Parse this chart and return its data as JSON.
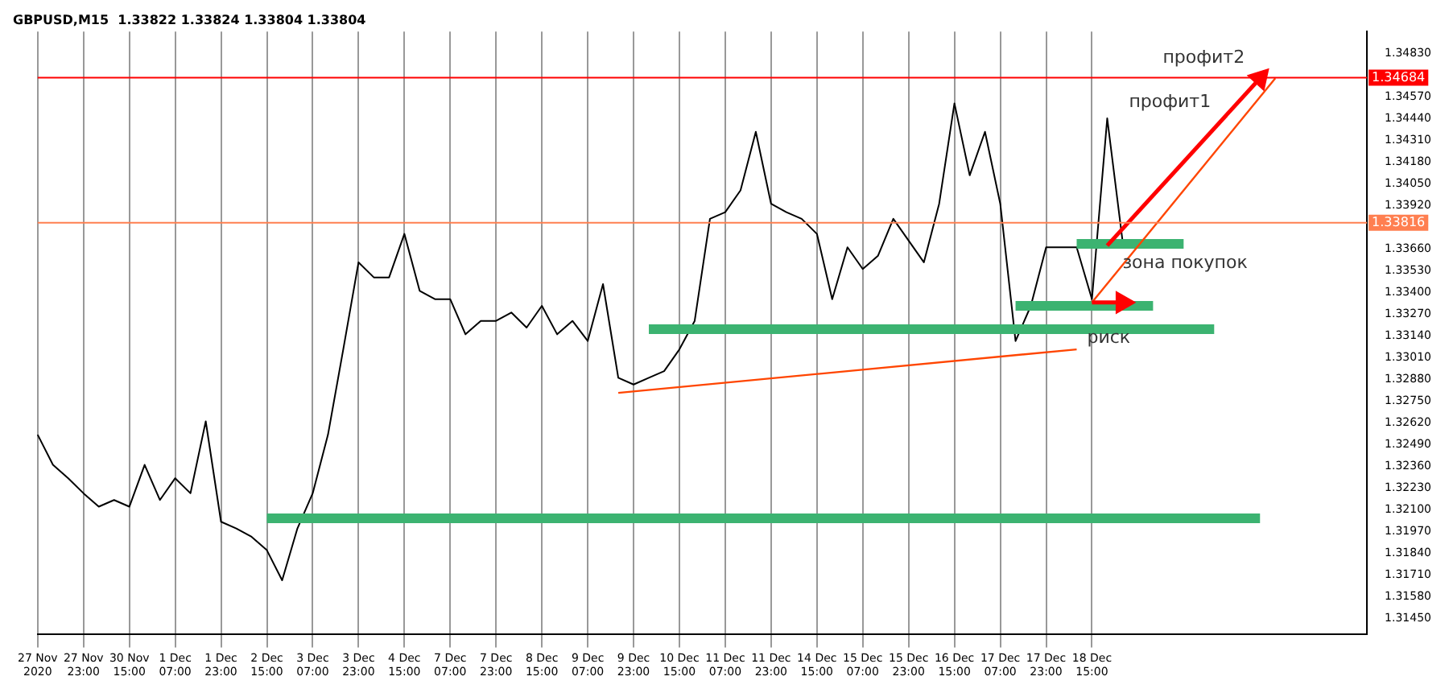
{
  "chart_data": {
    "type": "line",
    "title": "GBPUSD,M15  1.33822 1.33824 1.33804 1.33804",
    "categories": [
      "27 Nov 2020",
      null,
      null,
      "27 Nov 23:00",
      null,
      null,
      "30 Nov 15:00",
      null,
      null,
      "1 Dec 07:00",
      null,
      null,
      "1 Dec 23:00",
      null,
      null,
      "2 Dec 15:00",
      null,
      null,
      "3 Dec 07:00",
      null,
      null,
      "3 Dec 23:00",
      null,
      null,
      "4 Dec 15:00",
      null,
      null,
      "7 Dec 07:00",
      null,
      null,
      "7 Dec 23:00",
      null,
      null,
      "8 Dec 15:00",
      null,
      null,
      "9 Dec 07:00",
      null,
      null,
      "9 Dec 23:00",
      null,
      null,
      "10 Dec 15:00",
      null,
      null,
      "11 Dec 07:00",
      null,
      null,
      "11 Dec 23:00",
      null,
      null,
      "14 Dec 15:00",
      null,
      null,
      "15 Dec 07:00",
      null,
      null,
      "15 Dec 23:00",
      null,
      null,
      "16 Dec 15:00",
      null,
      null,
      "17 Dec 07:00",
      null,
      null,
      "17 Dec 23:00",
      null,
      null,
      "18 Dec 15:00",
      null,
      null,
      null,
      null,
      null,
      null,
      null,
      null,
      null,
      null,
      null,
      null,
      null,
      null,
      null,
      null,
      null,
      null
    ],
    "ylim": [
      1.31356,
      1.34959
    ],
    "yticks": [
      {
        "value": 1.3145,
        "label": "1.31450"
      },
      {
        "value": 1.3158,
        "label": "1.31580"
      },
      {
        "value": 1.3171,
        "label": "1.31710"
      },
      {
        "value": 1.3184,
        "label": "1.31840"
      },
      {
        "value": 1.3197,
        "label": "1.31970"
      },
      {
        "value": 1.321,
        "label": "1.32100"
      },
      {
        "value": 1.3223,
        "label": "1.32230"
      },
      {
        "value": 1.3236,
        "label": "1.32360"
      },
      {
        "value": 1.3249,
        "label": "1.32490"
      },
      {
        "value": 1.3262,
        "label": "1.32620"
      },
      {
        "value": 1.3275,
        "label": "1.32750"
      },
      {
        "value": 1.3288,
        "label": "1.32880"
      },
      {
        "value": 1.3301,
        "label": "1.33010"
      },
      {
        "value": 1.3314,
        "label": "1.33140"
      },
      {
        "value": 1.3327,
        "label": "1.33270"
      },
      {
        "value": 1.334,
        "label": "1.33400"
      },
      {
        "value": 1.3353,
        "label": "1.33530"
      },
      {
        "value": 1.3366,
        "label": "1.33660"
      },
      {
        "value": 1.3392,
        "label": "1.33920"
      },
      {
        "value": 1.3405,
        "label": "1.34050"
      },
      {
        "value": 1.3418,
        "label": "1.34180"
      },
      {
        "value": 1.3431,
        "label": "1.34310"
      },
      {
        "value": 1.3444,
        "label": "1.34440"
      },
      {
        "value": 1.3457,
        "label": "1.34570"
      },
      {
        "value": 1.3483,
        "label": "1.34830"
      }
    ],
    "grid": "x",
    "legend": false,
    "marker": "none",
    "series": [
      {
        "color": "#000000",
        "values": [
          1.3255,
          1.3237,
          1.3229,
          1.322,
          1.3212,
          1.3216,
          1.3212,
          1.3237,
          1.3216,
          1.3229,
          1.322,
          1.3263,
          1.3203,
          1.3199,
          1.3194,
          1.3186,
          1.3168,
          1.3199,
          1.322,
          1.3255,
          1.3306,
          1.3358,
          1.3349,
          1.3349,
          1.3375,
          1.3341,
          1.3336,
          1.3336,
          1.3315,
          1.3323,
          1.3323,
          1.3328,
          1.3319,
          1.3332,
          1.3315,
          1.3323,
          1.3311,
          1.3345,
          1.3289,
          1.3285,
          1.3289,
          1.3293,
          1.3306,
          1.3323,
          1.3384,
          1.3388,
          1.3401,
          1.3436,
          1.3393,
          1.3388,
          1.3384,
          1.3375,
          1.3336,
          1.3367,
          1.3354,
          1.3362,
          1.3384,
          1.3371,
          1.3358,
          1.3393,
          1.3453,
          1.341,
          1.3436,
          1.3393,
          1.3311,
          1.3332,
          1.3367,
          1.3367,
          1.3367,
          1.3336,
          1.3444,
          1.3371,
          null,
          null,
          null,
          null,
          null,
          null,
          null,
          null,
          null,
          null,
          null,
          null,
          null,
          null,
          null,
          null
        ]
      },
      {
        "type": "line",
        "color": "#3cb371",
        "values": [
          null,
          null,
          null,
          null,
          null,
          null,
          null,
          null,
          null,
          null,
          null,
          null,
          null,
          null,
          null,
          null,
          null,
          null,
          null,
          null,
          null,
          null,
          null,
          null,
          null,
          null,
          null,
          null,
          null,
          null,
          null,
          null,
          null,
          null,
          null,
          null,
          null,
          null,
          null,
          null,
          null,
          null,
          null,
          null,
          null,
          null,
          null,
          null,
          null,
          null,
          null,
          null,
          null,
          null,
          null,
          null,
          null,
          null,
          null,
          null,
          null,
          null,
          null,
          null,
          null,
          null,
          null,
          null,
          1.3369,
          null,
          null,
          null,
          null,
          null,
          null,
          1.3369,
          null,
          null,
          null,
          null,
          null,
          null,
          null,
          null,
          null,
          null,
          null,
          null
        ]
      },
      {
        "type": "line",
        "color": "#3cb371",
        "values": [
          null,
          null,
          null,
          null,
          null,
          null,
          null,
          null,
          null,
          null,
          null,
          null,
          null,
          null,
          null,
          null,
          null,
          null,
          null,
          null,
          null,
          null,
          null,
          null,
          null,
          null,
          null,
          null,
          null,
          null,
          null,
          null,
          null,
          null,
          null,
          null,
          null,
          null,
          null,
          null,
          null,
          null,
          null,
          null,
          null,
          null,
          null,
          null,
          null,
          null,
          null,
          null,
          null,
          null,
          null,
          null,
          null,
          null,
          null,
          null,
          null,
          null,
          null,
          null,
          1.3332,
          null,
          null,
          null,
          null,
          null,
          null,
          null,
          null,
          1.3332,
          null,
          null,
          null,
          null,
          null,
          null,
          null,
          null,
          null,
          null,
          null,
          null,
          null,
          null
        ]
      },
      {
        "type": "line",
        "color": "#3cb371",
        "values": [
          null,
          null,
          null,
          null,
          null,
          null,
          null,
          null,
          null,
          null,
          null,
          null,
          null,
          null,
          null,
          null,
          null,
          null,
          null,
          null,
          null,
          null,
          null,
          null,
          null,
          null,
          null,
          null,
          null,
          null,
          null,
          null,
          null,
          null,
          null,
          null,
          null,
          null,
          null,
          null,
          1.3318,
          null,
          null,
          null,
          null,
          null,
          null,
          null,
          null,
          null,
          null,
          null,
          null,
          null,
          null,
          null,
          null,
          null,
          null,
          null,
          null,
          null,
          null,
          null,
          null,
          null,
          null,
          null,
          null,
          null,
          null,
          null,
          null,
          null,
          null,
          null,
          null,
          1.3318,
          null,
          null,
          null,
          null,
          null,
          null,
          null,
          null,
          null,
          null
        ]
      },
      {
        "type": "line",
        "color": "#3cb371",
        "values": [
          null,
          null,
          null,
          null,
          null,
          null,
          null,
          null,
          null,
          null,
          null,
          null,
          null,
          null,
          null,
          1.3205,
          null,
          null,
          null,
          null,
          null,
          null,
          null,
          null,
          null,
          null,
          null,
          null,
          null,
          null,
          null,
          null,
          null,
          null,
          null,
          null,
          null,
          null,
          null,
          null,
          null,
          null,
          null,
          null,
          null,
          null,
          null,
          null,
          null,
          null,
          null,
          null,
          null,
          null,
          null,
          null,
          null,
          null,
          null,
          null,
          null,
          null,
          null,
          null,
          null,
          null,
          null,
          null,
          null,
          null,
          null,
          null,
          null,
          null,
          null,
          null,
          null,
          null,
          null,
          null,
          1.3205,
          null,
          null,
          null,
          null,
          null,
          null,
          null
        ]
      },
      {
        "type": "line",
        "color": "#ff4500",
        "values": [
          null,
          null,
          null,
          null,
          null,
          null,
          null,
          null,
          null,
          null,
          null,
          null,
          null,
          null,
          null,
          null,
          null,
          null,
          null,
          null,
          null,
          null,
          null,
          null,
          null,
          null,
          null,
          null,
          null,
          null,
          null,
          null,
          null,
          null,
          null,
          null,
          null,
          null,
          1.328,
          null,
          null,
          null,
          null,
          null,
          null,
          null,
          null,
          null,
          null,
          null,
          null,
          null,
          null,
          null,
          null,
          null,
          null,
          null,
          null,
          null,
          null,
          null,
          null,
          null,
          null,
          null,
          null,
          null,
          1.3306,
          null,
          null,
          null,
          null,
          null,
          null,
          null,
          null,
          null,
          null,
          null,
          null,
          null,
          null,
          null,
          null,
          null,
          null,
          null
        ]
      },
      {
        "type": "line",
        "color": "#ff0000",
        "marker": "triangle",
        "values": [
          null,
          null,
          null,
          null,
          null,
          null,
          null,
          null,
          null,
          null,
          null,
          null,
          null,
          null,
          null,
          null,
          null,
          null,
          null,
          null,
          null,
          null,
          null,
          null,
          null,
          null,
          null,
          null,
          null,
          null,
          null,
          null,
          null,
          null,
          null,
          null,
          null,
          null,
          null,
          null,
          null,
          null,
          null,
          null,
          null,
          null,
          null,
          null,
          null,
          null,
          null,
          null,
          null,
          null,
          null,
          null,
          null,
          null,
          null,
          null,
          null,
          null,
          null,
          null,
          null,
          null,
          null,
          null,
          null,
          null,
          1.3368,
          null,
          null,
          null,
          null,
          null,
          null,
          null,
          null,
          null,
          1.3468,
          null,
          null,
          null,
          null,
          null,
          null,
          null
        ]
      },
      {
        "type": "line",
        "color": "#ff4500",
        "values": [
          null,
          null,
          null,
          null,
          null,
          null,
          null,
          null,
          null,
          null,
          null,
          null,
          null,
          null,
          null,
          null,
          null,
          null,
          null,
          null,
          null,
          null,
          null,
          null,
          null,
          null,
          null,
          null,
          null,
          null,
          null,
          null,
          null,
          null,
          null,
          null,
          null,
          null,
          null,
          null,
          null,
          null,
          null,
          null,
          null,
          null,
          null,
          null,
          null,
          null,
          null,
          null,
          null,
          null,
          null,
          null,
          null,
          null,
          null,
          null,
          null,
          null,
          null,
          null,
          null,
          null,
          null,
          null,
          null,
          1.3334,
          null,
          null,
          null,
          null,
          null,
          null,
          null,
          null,
          null,
          null,
          null,
          1.3468,
          null,
          null,
          null,
          null,
          null,
          null
        ]
      },
      {
        "type": "line",
        "color": "#ff0000",
        "marker": "triangle",
        "values": [
          null,
          null,
          null,
          null,
          null,
          null,
          null,
          null,
          null,
          null,
          null,
          null,
          null,
          null,
          null,
          null,
          null,
          null,
          null,
          null,
          null,
          null,
          null,
          null,
          null,
          null,
          null,
          null,
          null,
          null,
          null,
          null,
          null,
          null,
          null,
          null,
          null,
          null,
          null,
          null,
          null,
          null,
          null,
          null,
          null,
          null,
          null,
          null,
          null,
          null,
          null,
          null,
          null,
          null,
          null,
          null,
          null,
          null,
          null,
          null,
          null,
          null,
          null,
          null,
          null,
          null,
          null,
          null,
          null,
          1.3334,
          null,
          1.3334,
          null,
          null,
          null,
          null,
          null,
          null,
          null,
          null,
          null,
          null,
          null,
          null,
          null,
          null,
          null,
          null
        ]
      }
    ],
    "ref_lines": [
      {
        "axis": "y",
        "value": 1.34684,
        "label": "1.34684",
        "color": "#ff0000"
      },
      {
        "axis": "y",
        "value": 1.33816,
        "label": "1.33816",
        "color": "#ff7f50"
      }
    ],
    "annotations": [
      {
        "text": "профит2",
        "y": 1.34684
      },
      "профит1",
      {
        "text": "зона покупок",
        "y": 1.3369
      },
      {
        "text": "риск",
        "y": 1.3332
      }
    ]
  }
}
